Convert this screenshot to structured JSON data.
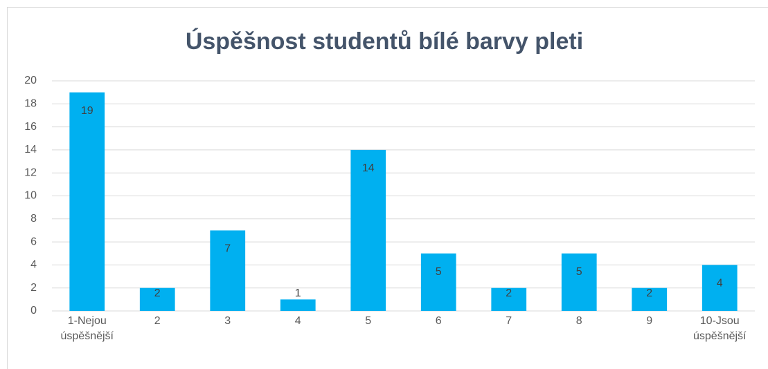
{
  "chart_data": {
    "type": "bar",
    "title": "Úspěšnost studentů bílé barvy pleti",
    "categories": [
      "1-Nejou úspěšnější",
      "2",
      "3",
      "4",
      "5",
      "6",
      "7",
      "8",
      "9",
      "10-Jsou úspěšnější"
    ],
    "values": [
      19,
      2,
      7,
      1,
      14,
      5,
      2,
      5,
      2,
      4
    ],
    "color": "#00b0f0",
    "ylim": [
      0,
      20
    ],
    "yticks": [
      0,
      2,
      4,
      6,
      8,
      10,
      12,
      14,
      16,
      18,
      20
    ],
    "grid": true
  }
}
